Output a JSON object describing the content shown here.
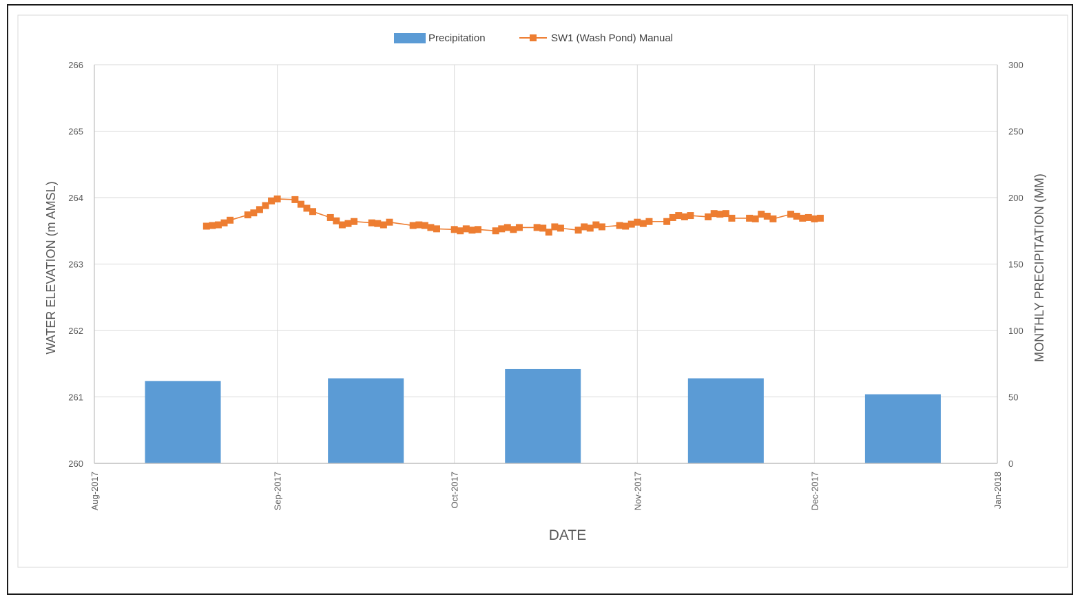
{
  "chart_data": {
    "type": "bar+line",
    "legend": {
      "placement": "top-center",
      "entries": [
        "Precipitation",
        "SW1 (Wash Pond) Manual"
      ]
    },
    "xlabel": "DATE",
    "ylabel_left": "WATER ELEVATION (m AMSL)",
    "ylabel_right": "MONTHLY PRECIPITATION (MM)",
    "x_ticks": [
      "Aug-2017",
      "Sep-2017",
      "Oct-2017",
      "Nov-2017",
      "Dec-2017",
      "Jan-2018"
    ],
    "x_tick_dates": [
      "2017-08-01",
      "2017-09-01",
      "2017-10-01",
      "2017-11-01",
      "2017-12-01",
      "2018-01-01"
    ],
    "xlim": [
      "2017-08-01",
      "2018-01-01"
    ],
    "y_left_lim": [
      260,
      266
    ],
    "y_left_ticks": [
      "260",
      "261",
      "262",
      "263",
      "264",
      "265",
      "266"
    ],
    "y_right_lim": [
      0,
      300
    ],
    "y_right_ticks": [
      "0",
      "50",
      "100",
      "150",
      "200",
      "250",
      "300"
    ],
    "grid": true,
    "colors": {
      "bars": "#5b9bd5",
      "line": "#ed7d31",
      "grid": "#d9d9d9",
      "axis_text": "#595959"
    },
    "bars": {
      "name": "Precipitation",
      "axis": "right",
      "categories": [
        "Aug-2017",
        "Sep-2017",
        "Oct-2017",
        "Nov-2017",
        "Dec-2017"
      ],
      "centers": [
        "2017-08-16",
        "2017-09-16",
        "2017-10-16",
        "2017-11-16",
        "2017-12-16"
      ],
      "values": [
        62,
        64,
        71,
        64,
        52
      ]
    },
    "line": {
      "name": "SW1 (Wash Pond) Manual",
      "axis": "left",
      "points": [
        [
          "2017-08-20",
          263.57
        ],
        [
          "2017-08-21",
          263.58
        ],
        [
          "2017-08-22",
          263.59
        ],
        [
          "2017-08-23",
          263.62
        ],
        [
          "2017-08-24",
          263.66
        ],
        [
          "2017-08-27",
          263.74
        ],
        [
          "2017-08-28",
          263.77
        ],
        [
          "2017-08-29",
          263.82
        ],
        [
          "2017-08-30",
          263.88
        ],
        [
          "2017-08-31",
          263.95
        ],
        [
          "2017-09-01",
          263.98
        ],
        [
          "2017-09-04",
          263.97
        ],
        [
          "2017-09-05",
          263.9
        ],
        [
          "2017-09-06",
          263.84
        ],
        [
          "2017-09-07",
          263.79
        ],
        [
          "2017-09-10",
          263.7
        ],
        [
          "2017-09-11",
          263.65
        ],
        [
          "2017-09-12",
          263.59
        ],
        [
          "2017-09-13",
          263.61
        ],
        [
          "2017-09-14",
          263.64
        ],
        [
          "2017-09-17",
          263.62
        ],
        [
          "2017-09-18",
          263.61
        ],
        [
          "2017-09-19",
          263.59
        ],
        [
          "2017-09-20",
          263.63
        ],
        [
          "2017-09-24",
          263.58
        ],
        [
          "2017-09-25",
          263.59
        ],
        [
          "2017-09-26",
          263.58
        ],
        [
          "2017-09-27",
          263.55
        ],
        [
          "2017-09-28",
          263.53
        ],
        [
          "2017-10-01",
          263.52
        ],
        [
          "2017-10-02",
          263.5
        ],
        [
          "2017-10-03",
          263.53
        ],
        [
          "2017-10-04",
          263.51
        ],
        [
          "2017-10-05",
          263.52
        ],
        [
          "2017-10-08",
          263.5
        ],
        [
          "2017-10-09",
          263.53
        ],
        [
          "2017-10-10",
          263.55
        ],
        [
          "2017-10-11",
          263.52
        ],
        [
          "2017-10-12",
          263.55
        ],
        [
          "2017-10-15",
          263.55
        ],
        [
          "2017-10-16",
          263.54
        ],
        [
          "2017-10-17",
          263.48
        ],
        [
          "2017-10-18",
          263.56
        ],
        [
          "2017-10-19",
          263.54
        ],
        [
          "2017-10-22",
          263.51
        ],
        [
          "2017-10-23",
          263.56
        ],
        [
          "2017-10-24",
          263.54
        ],
        [
          "2017-10-25",
          263.59
        ],
        [
          "2017-10-26",
          263.56
        ],
        [
          "2017-10-29",
          263.58
        ],
        [
          "2017-10-30",
          263.57
        ],
        [
          "2017-10-31",
          263.6
        ],
        [
          "2017-11-01",
          263.63
        ],
        [
          "2017-11-02",
          263.61
        ],
        [
          "2017-11-03",
          263.64
        ],
        [
          "2017-11-06",
          263.64
        ],
        [
          "2017-11-07",
          263.7
        ],
        [
          "2017-11-08",
          263.73
        ],
        [
          "2017-11-09",
          263.71
        ],
        [
          "2017-11-10",
          263.73
        ],
        [
          "2017-11-13",
          263.71
        ],
        [
          "2017-11-14",
          263.76
        ],
        [
          "2017-11-15",
          263.75
        ],
        [
          "2017-11-16",
          263.76
        ],
        [
          "2017-11-17",
          263.69
        ],
        [
          "2017-11-20",
          263.69
        ],
        [
          "2017-11-21",
          263.68
        ],
        [
          "2017-11-22",
          263.75
        ],
        [
          "2017-11-23",
          263.72
        ],
        [
          "2017-11-24",
          263.68
        ],
        [
          "2017-11-27",
          263.75
        ],
        [
          "2017-11-28",
          263.72
        ],
        [
          "2017-11-29",
          263.69
        ],
        [
          "2017-11-30",
          263.7
        ],
        [
          "2017-12-01",
          263.68
        ],
        [
          "2017-12-02",
          263.69
        ]
      ]
    }
  }
}
